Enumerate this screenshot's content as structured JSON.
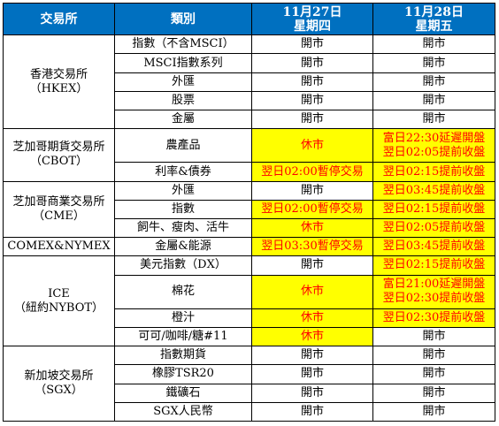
{
  "header": {
    "exchange": "交易所",
    "category": "類別",
    "day1": {
      "date": "11月27日",
      "weekday": "星期四"
    },
    "day2": {
      "date": "11月28日",
      "weekday": "星期五"
    }
  },
  "exchanges": {
    "hkex": {
      "line1": "香港交易所",
      "line2": "（HKEX）"
    },
    "cbot": {
      "line1": "芝加哥期貨交易所",
      "line2": "（CBOT）"
    },
    "cme": {
      "line1": "芝加哥商業交易所",
      "line2": "（CME）"
    },
    "comex": {
      "line1": "COMEX&NYMEX"
    },
    "ice": {
      "line1": "ICE",
      "line2": "（紐約NYBOT）"
    },
    "sgx": {
      "line1": "新加坡交易所",
      "line2": "（SGX）"
    }
  },
  "rows": [
    {
      "category": "指數（不含MSCI）",
      "day1": "開市",
      "day2": "開市"
    },
    {
      "category": "MSCI指數系列",
      "day1": "開市",
      "day2": "開市"
    },
    {
      "category": "外匯",
      "day1": "開市",
      "day2": "開市"
    },
    {
      "category": "股票",
      "day1": "開市",
      "day2": "開市"
    },
    {
      "category": "金屬",
      "day1": "開市",
      "day2": "開市"
    },
    {
      "category": "農產品",
      "day1": "休市",
      "day2a": "富日22:30延遲開盤",
      "day2b": "翌日02:05提前收盤"
    },
    {
      "category": "利率&債券",
      "day1": "翌日02:00暫停交易",
      "day2": "翌日02:15提前收盤"
    },
    {
      "category": "外匯",
      "day1": "開市",
      "day2": "翌日03:45提前收盤"
    },
    {
      "category": "指數",
      "day1": "翌日02:00暫停交易",
      "day2": "翌日02:15提前收盤"
    },
    {
      "category": "飼牛、瘦肉、活牛",
      "day1": "休市",
      "day2": "翌日02:05提前收盤"
    },
    {
      "category": "金屬&能源",
      "day1": "翌日03:30暫停交易",
      "day2": "翌日03:45提前收盤"
    },
    {
      "category": "美元指數（DX）",
      "day1": "開市",
      "day2": "翌日02:15提前收盤"
    },
    {
      "category": "棉花",
      "day1": "休市",
      "day2a": "富日21:00延遲開盤",
      "day2b": "翌日02:30提前收盤"
    },
    {
      "category": "橙汁",
      "day1": "休市",
      "day2": "翌日02:30提前收盤"
    },
    {
      "category": "可可/咖啡/糖#11",
      "day1": "休市",
      "day2": "開市"
    },
    {
      "category": "指數期貨",
      "day1": "開市",
      "day2": "開市"
    },
    {
      "category": "橡膠TSR20",
      "day1": "開市",
      "day2": "開市"
    },
    {
      "category": "鐵礦石",
      "day1": "開市",
      "day2": "開市"
    },
    {
      "category": "SGX人民幣",
      "day1": "開市",
      "day2": "開市"
    }
  ],
  "colors": {
    "header_bg": "#0070c0",
    "highlight_bg": "#ffff00",
    "highlight_text": "#ff0000"
  }
}
